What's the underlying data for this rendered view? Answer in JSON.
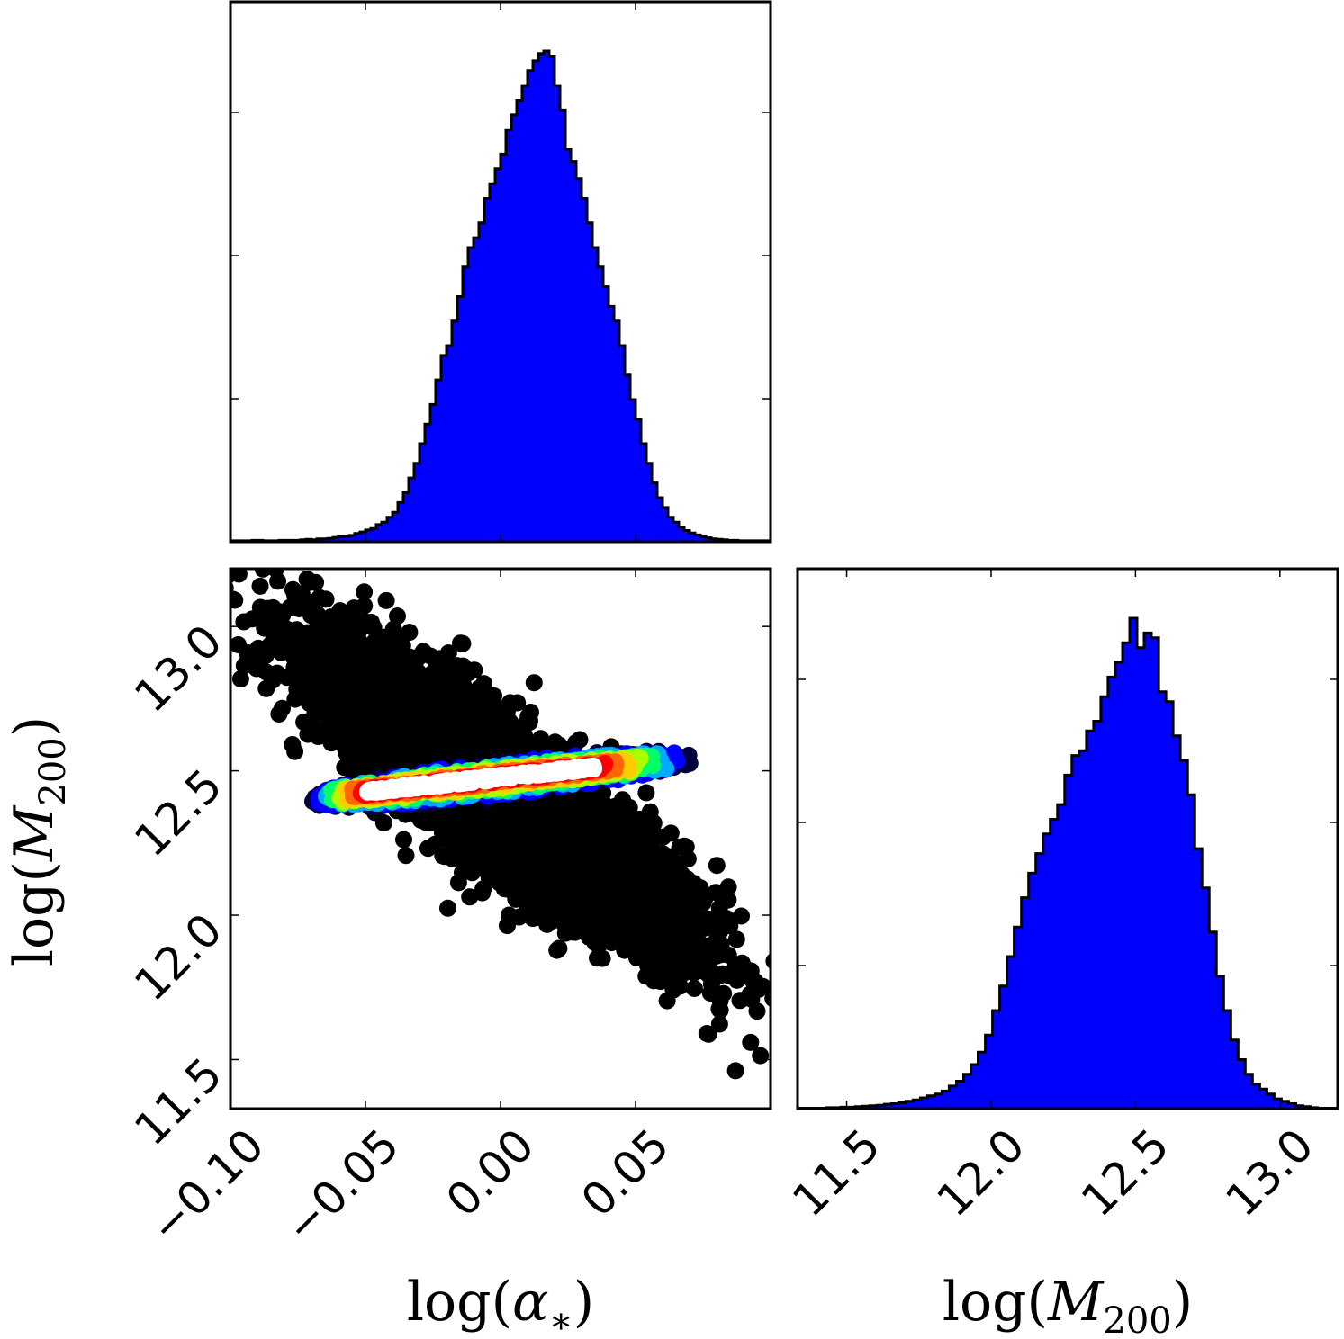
{
  "chart_data": [
    {
      "type": "histogram",
      "panel": "top-left",
      "x_variable": "log(α*)",
      "xlim": [
        -0.1,
        0.1
      ],
      "ylim": [
        0,
        1.0
      ],
      "xticks": [
        -0.05,
        0.0,
        0.05
      ],
      "yticks": [
        0.25,
        0.5,
        0.75
      ],
      "show_tick_labels": false,
      "bin_start": -0.1,
      "bin_width": 0.002,
      "values": [
        0.002,
        0.002,
        0.002,
        0.002,
        0.003,
        0.003,
        0.002,
        0.002,
        0.002,
        0.003,
        0.003,
        0.003,
        0.003,
        0.004,
        0.005,
        0.004,
        0.006,
        0.006,
        0.007,
        0.009,
        0.01,
        0.011,
        0.013,
        0.017,
        0.02,
        0.024,
        0.027,
        0.035,
        0.04,
        0.05,
        0.06,
        0.08,
        0.1,
        0.13,
        0.16,
        0.2,
        0.24,
        0.28,
        0.33,
        0.38,
        0.4,
        0.45,
        0.5,
        0.56,
        0.6,
        0.62,
        0.65,
        0.7,
        0.73,
        0.76,
        0.79,
        0.84,
        0.87,
        0.9,
        0.93,
        0.96,
        0.98,
        0.995,
        1.0,
        0.99,
        0.93,
        0.88,
        0.8,
        0.775,
        0.74,
        0.7,
        0.65,
        0.6,
        0.56,
        0.52,
        0.48,
        0.45,
        0.4,
        0.34,
        0.29,
        0.25,
        0.2,
        0.16,
        0.12,
        0.09,
        0.07,
        0.05,
        0.04,
        0.03,
        0.023,
        0.018,
        0.014,
        0.01,
        0.008,
        0.006,
        0.005,
        0.004,
        0.003,
        0.003,
        0.002,
        0.002,
        0.002,
        0.002,
        0.002,
        0.002
      ],
      "fill_color": "#0000ff",
      "edge_color": "#000000"
    },
    {
      "type": "scatter",
      "panel": "bottom-left",
      "xlabel": "log(α*)",
      "ylabel": "log(M200)",
      "xlim": [
        -0.1,
        0.1
      ],
      "ylim": [
        11.33,
        13.2
      ],
      "xticks": [
        -0.1,
        -0.05,
        0.0,
        0.05
      ],
      "xtick_labels": [
        "−0.10",
        "−0.05",
        "0.00",
        "0.05"
      ],
      "yticks": [
        11.5,
        12.0,
        12.5,
        13.0
      ],
      "ytick_labels": [
        "11.5",
        "12.0",
        "12.5",
        "13.0"
      ],
      "tick_label_rotation_deg": 45,
      "distribution": {
        "center": [
          0.0,
          12.42
        ],
        "sigma_x": 0.034,
        "sigma_perp": 0.13,
        "slope": -6.5,
        "n_points": 5000
      },
      "density_contour_band": {
        "slope": 1.0,
        "center": [
          0.0,
          12.47
        ],
        "half_length": 0.07,
        "half_width": 0.065
      },
      "point_color": "#000000",
      "colormap": [
        "#00003c",
        "#0000ff",
        "#00aaff",
        "#00ff66",
        "#aaff00",
        "#ffcc00",
        "#ff6600",
        "#ff0000",
        "#ffffff"
      ],
      "grid": false
    },
    {
      "type": "histogram",
      "panel": "bottom-right",
      "xlabel": "log(M200)",
      "xlim": [
        11.33,
        13.2
      ],
      "ylim": [
        0,
        1.0
      ],
      "xticks": [
        11.5,
        12.0,
        12.5,
        13.0
      ],
      "xtick_labels": [
        "11.5",
        "12.0",
        "12.5",
        "13.0"
      ],
      "yticks": [
        0.25,
        0.5,
        0.75
      ],
      "show_ytick_labels": false,
      "tick_label_rotation_deg": 45,
      "bin_start": 11.33,
      "bin_width": 0.025,
      "values": [
        0.001,
        0.001,
        0.001,
        0.001,
        0.002,
        0.002,
        0.003,
        0.003,
        0.004,
        0.005,
        0.006,
        0.007,
        0.009,
        0.01,
        0.012,
        0.015,
        0.018,
        0.022,
        0.026,
        0.03,
        0.036,
        0.046,
        0.056,
        0.07,
        0.09,
        0.115,
        0.15,
        0.2,
        0.25,
        0.31,
        0.37,
        0.43,
        0.48,
        0.52,
        0.56,
        0.59,
        0.62,
        0.68,
        0.72,
        0.73,
        0.77,
        0.79,
        0.84,
        0.88,
        0.91,
        0.95,
        1.0,
        0.94,
        0.97,
        0.96,
        0.85,
        0.83,
        0.76,
        0.71,
        0.64,
        0.53,
        0.45,
        0.36,
        0.27,
        0.2,
        0.14,
        0.1,
        0.07,
        0.05,
        0.04,
        0.03,
        0.02,
        0.015,
        0.01,
        0.006,
        0.004,
        0.002,
        0.001,
        0.001,
        0.001
      ],
      "fill_color": "#0000ff",
      "edge_color": "#000000"
    }
  ]
}
